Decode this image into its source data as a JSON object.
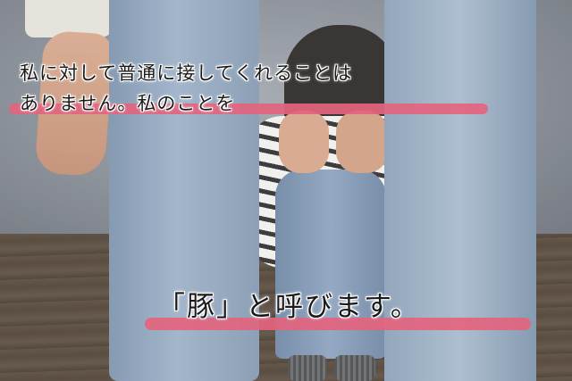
{
  "caption": {
    "line1": "私に対して普通に接してくれることは",
    "line2": "ありません。私のことを",
    "line3": "「豚」と呼びます。"
  },
  "colors": {
    "highlight": "#e3647e",
    "text": "#1a1a1a"
  }
}
